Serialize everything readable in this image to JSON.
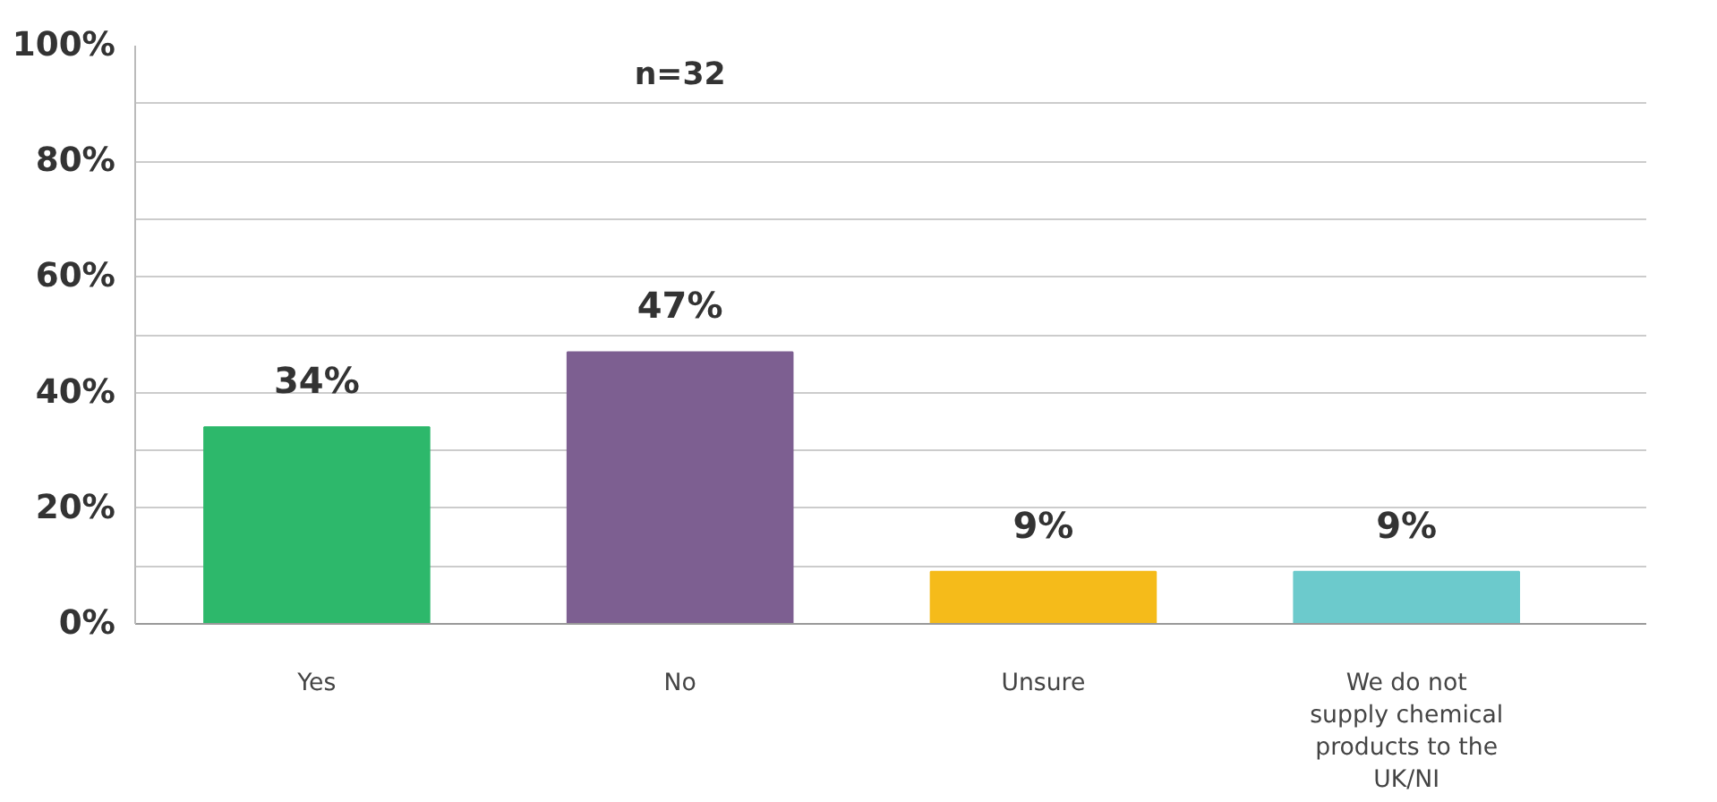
{
  "chart_data": {
    "type": "bar",
    "categories": [
      "Yes",
      "No",
      "Unsure",
      "We do not supply chemical products to the UK/NI"
    ],
    "values": [
      34,
      47,
      9,
      9
    ],
    "colors": [
      "#2db86b",
      "#7d5f91",
      "#f5bb1a",
      "#6ccacc"
    ],
    "ylim": [
      0,
      100
    ],
    "yticks": [
      {
        "value": 0,
        "label": "0%"
      },
      {
        "value": 10,
        "label": null
      },
      {
        "value": 20,
        "label": "20%"
      },
      {
        "value": 30,
        "label": null
      },
      {
        "value": 40,
        "label": "40%"
      },
      {
        "value": 50,
        "label": null
      },
      {
        "value": 60,
        "label": "60%"
      },
      {
        "value": 70,
        "label": null
      },
      {
        "value": 80,
        "label": "80%"
      },
      {
        "value": 90,
        "label": null
      },
      {
        "value": 100,
        "label": "100%"
      }
    ],
    "value_labels": [
      "34%",
      "47%",
      "9%",
      "9%"
    ],
    "grid": "y",
    "annotations": [
      "n=32"
    ]
  }
}
